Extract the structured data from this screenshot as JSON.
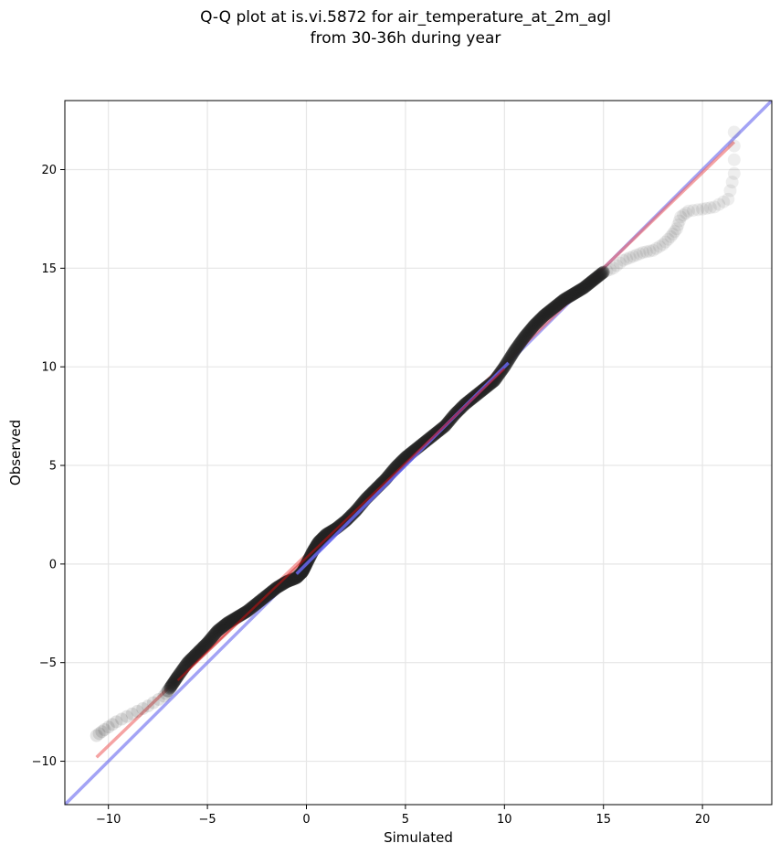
{
  "chart_data": {
    "type": "scatter",
    "title_line1": "Q-Q plot at is.vi.5872 for air_temperature_at_2m_agl",
    "title_line2": "from 30-36h during year",
    "xlabel": "Simulated",
    "ylabel": "Observed",
    "xlim": [
      -12.2,
      23.5
    ],
    "ylim": [
      -12.2,
      23.5
    ],
    "xticks": [
      -10,
      -5,
      0,
      5,
      10,
      15,
      20
    ],
    "yticks": [
      -10,
      -5,
      0,
      5,
      10,
      15,
      20
    ],
    "grid": true,
    "reference_line": {
      "from": [
        -12.2,
        -12.2
      ],
      "to": [
        23.5,
        23.5
      ],
      "color": "#6666ee"
    },
    "fit_line": {
      "from": [
        -10.6,
        -9.8
      ],
      "to": [
        21.6,
        21.4
      ],
      "color": "#ee6666"
    },
    "quantile_curve": [
      [
        -10.6,
        -8.7
      ],
      [
        -10.2,
        -8.4
      ],
      [
        -9.6,
        -8.0
      ],
      [
        -8.8,
        -7.6
      ],
      [
        -8.0,
        -7.2
      ],
      [
        -7.2,
        -6.7
      ],
      [
        -6.9,
        -6.3
      ],
      [
        -6.5,
        -5.7
      ],
      [
        -6.0,
        -5.0
      ],
      [
        -5.5,
        -4.5
      ],
      [
        -5.0,
        -4.0
      ],
      [
        -4.5,
        -3.4
      ],
      [
        -4.0,
        -3.0
      ],
      [
        -3.5,
        -2.7
      ],
      [
        -3.0,
        -2.4
      ],
      [
        -2.5,
        -2.0
      ],
      [
        -2.0,
        -1.6
      ],
      [
        -1.5,
        -1.2
      ],
      [
        -1.0,
        -0.9
      ],
      [
        -0.5,
        -0.7
      ],
      [
        -0.2,
        -0.4
      ],
      [
        0.0,
        0.0
      ],
      [
        0.3,
        0.6
      ],
      [
        0.6,
        1.1
      ],
      [
        1.0,
        1.5
      ],
      [
        1.5,
        1.8
      ],
      [
        2.0,
        2.2
      ],
      [
        2.5,
        2.7
      ],
      [
        3.0,
        3.3
      ],
      [
        3.5,
        3.8
      ],
      [
        4.0,
        4.3
      ],
      [
        4.5,
        4.9
      ],
      [
        5.0,
        5.4
      ],
      [
        5.5,
        5.8
      ],
      [
        6.0,
        6.2
      ],
      [
        6.5,
        6.6
      ],
      [
        7.0,
        7.0
      ],
      [
        7.5,
        7.6
      ],
      [
        8.0,
        8.1
      ],
      [
        8.5,
        8.5
      ],
      [
        9.0,
        8.9
      ],
      [
        9.5,
        9.3
      ],
      [
        10.0,
        10.0
      ],
      [
        10.5,
        10.8
      ],
      [
        11.0,
        11.5
      ],
      [
        11.5,
        12.1
      ],
      [
        12.0,
        12.6
      ],
      [
        12.5,
        13.0
      ],
      [
        13.0,
        13.4
      ],
      [
        13.5,
        13.7
      ],
      [
        14.0,
        14.0
      ],
      [
        14.5,
        14.4
      ],
      [
        15.0,
        14.8
      ],
      [
        15.5,
        15.0
      ],
      [
        16.0,
        15.4
      ],
      [
        16.5,
        15.6
      ],
      [
        17.0,
        15.8
      ],
      [
        17.5,
        15.9
      ],
      [
        18.0,
        16.2
      ],
      [
        18.4,
        16.6
      ],
      [
        18.7,
        17.0
      ],
      [
        18.9,
        17.6
      ],
      [
        19.3,
        17.9
      ],
      [
        20.0,
        18.0
      ],
      [
        20.6,
        18.1
      ],
      [
        21.3,
        18.5
      ],
      [
        21.6,
        19.8
      ],
      [
        21.6,
        21.9
      ]
    ]
  }
}
